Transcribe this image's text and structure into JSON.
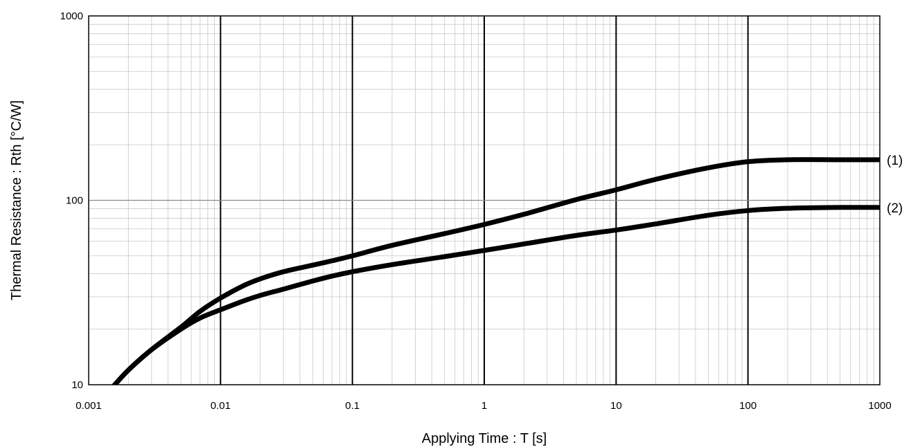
{
  "chart_data": {
    "type": "line",
    "title": "",
    "xlabel": "Applying Time : T [s]",
    "ylabel": "Thermal Resistance : Rth [°C/W]",
    "xscale": "log",
    "yscale": "log",
    "xlim": [
      0.001,
      1000
    ],
    "ylim": [
      10,
      1000
    ],
    "grid": true,
    "x_ticks": [
      0.001,
      0.01,
      0.1,
      1,
      10,
      100,
      1000
    ],
    "x_tick_labels": [
      "0.001",
      "0.01",
      "0.1",
      "1",
      "10",
      "100",
      "1000"
    ],
    "y_ticks": [
      10,
      100,
      1000
    ],
    "y_tick_labels": [
      "10",
      "100",
      "1000"
    ],
    "series": [
      {
        "name": "(1)",
        "x": [
          0.0015,
          0.002,
          0.003,
          0.005,
          0.007,
          0.01,
          0.015,
          0.02,
          0.03,
          0.05,
          0.07,
          0.1,
          0.2,
          0.5,
          1,
          2,
          5,
          10,
          20,
          50,
          100,
          200,
          500,
          1000
        ],
        "y": [
          9.6,
          12.0,
          15.5,
          20.5,
          25.0,
          29.5,
          34.5,
          37.5,
          41.0,
          44.5,
          47.0,
          50.0,
          57.0,
          66.0,
          74.0,
          84.0,
          101.0,
          114.0,
          130.0,
          150.0,
          162.0,
          166.0,
          166.0,
          166.0
        ]
      },
      {
        "name": "(2)",
        "x": [
          0.0015,
          0.002,
          0.003,
          0.005,
          0.007,
          0.01,
          0.015,
          0.02,
          0.03,
          0.05,
          0.07,
          0.1,
          0.2,
          0.5,
          1,
          2,
          5,
          10,
          20,
          50,
          100,
          200,
          500,
          1000
        ],
        "y": [
          9.6,
          12.0,
          15.5,
          20.0,
          23.0,
          25.5,
          28.5,
          30.5,
          33.0,
          36.5,
          38.8,
          41.0,
          44.8,
          49.5,
          53.5,
          58.0,
          64.5,
          69.0,
          74.5,
          83.0,
          88.0,
          90.5,
          91.5,
          91.5
        ]
      }
    ]
  }
}
